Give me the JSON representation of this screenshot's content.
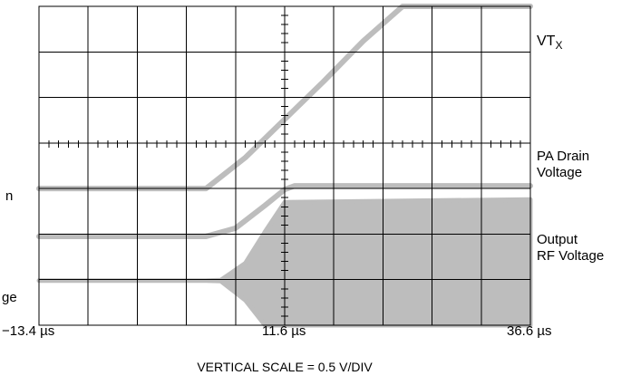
{
  "chart_data": {
    "type": "line",
    "xlabel": "",
    "ylabel": "",
    "x_tick_labels": [
      "−13.4 µs",
      "11.6 µs",
      "36.6 µs"
    ],
    "xlim_us": [
      -13.4,
      36.6
    ],
    "grid": true,
    "grid_divisions": {
      "x": 10,
      "y": 7
    },
    "footer": "VERTICAL SCALE = 0.5 V/DIV",
    "trace_color": "#bdbdbd",
    "series": [
      {
        "name": "VT",
        "name_subscript": "X",
        "x_us": [
          -13.4,
          3.6,
          7.6,
          11.6,
          15.6,
          19.6,
          23.6,
          36.6
        ],
        "y_div": [
          3.0,
          3.0,
          3.68,
          4.52,
          5.36,
          6.24,
          7.0,
          7.0
        ]
      },
      {
        "name_lines": [
          "PA Drain",
          "Voltage"
        ],
        "x_us": [
          -13.4,
          3.6,
          6.6,
          9.6,
          11.6,
          12.6,
          36.6
        ],
        "y_div": [
          1.95,
          1.95,
          2.13,
          2.63,
          2.98,
          3.06,
          3.06
        ]
      },
      {
        "name_lines": [
          "Output",
          "RF Voltage"
        ],
        "envelope": true,
        "x_us": [
          -13.4,
          3.6,
          5.1,
          7.6,
          9.6,
          11.6,
          36.6
        ],
        "y_upper_div": [
          0.98,
          0.98,
          0.99,
          1.36,
          2.05,
          2.7,
          2.76
        ],
        "y_lower_div": [
          0.98,
          0.98,
          0.97,
          0.55,
          0.0,
          0.0,
          0.0
        ]
      }
    ]
  }
}
